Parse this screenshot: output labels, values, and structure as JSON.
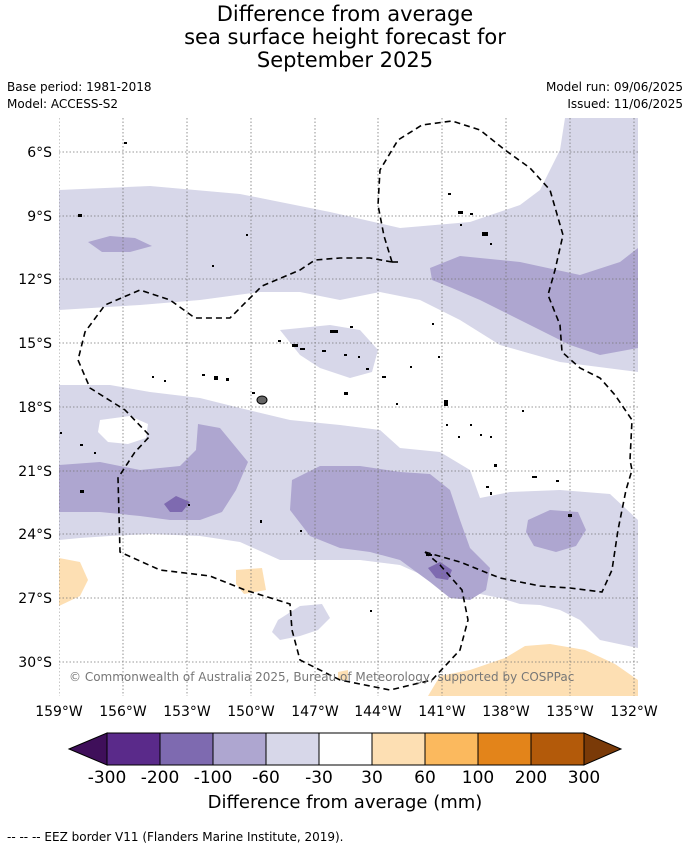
{
  "title_lines": [
    "Difference from average",
    "sea surface height forecast for",
    "September 2025"
  ],
  "meta_left": [
    "Base period: 1981-2018",
    "Model: ACCESS-S2"
  ],
  "meta_right": [
    "Model run: 09/06/2025",
    "Issued: 11/06/2025"
  ],
  "lat_labels": [
    "6°S",
    "9°S",
    "12°S",
    "15°S",
    "18°S",
    "21°S",
    "24°S",
    "27°S",
    "30°S"
  ],
  "lon_labels": [
    "159°W",
    "156°W",
    "153°W",
    "150°W",
    "147°W",
    "144°W",
    "141°W",
    "138°W",
    "135°W",
    "132°W"
  ],
  "copyright": "© Commonwealth of Australia 2025, Bureau of Meteorology, supported by COSPPac",
  "colorbar": {
    "ticks": [
      "-300",
      "-200",
      "-100",
      "-60",
      "-30",
      "30",
      "60",
      "100",
      "200",
      "300"
    ],
    "colors": [
      "#3f0f5a",
      "#5a2a8a",
      "#7e6ab0",
      "#aea6d0",
      "#d7d7e9",
      "#ffffff",
      "#fddfb3",
      "#fbb95e",
      "#e3841a",
      "#b35a0a",
      "#7a3a08"
    ],
    "title": "Difference from average (mm)"
  },
  "footnote": "--  --  -- EEZ border V11 (Flanders Marine Institute, 2019)."
}
